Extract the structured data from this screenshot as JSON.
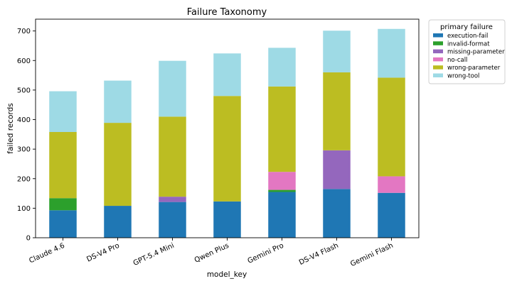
{
  "chart_data": {
    "type": "bar",
    "stacked": true,
    "title": "Failure Taxonomy",
    "xlabel": "model_key",
    "ylabel": "failed records",
    "ylim": [
      0,
      740
    ],
    "yticks": [
      0,
      100,
      200,
      300,
      400,
      500,
      600,
      700
    ],
    "grid": false,
    "legend": {
      "title": "primary failure",
      "placement": "outside-top-right"
    },
    "categories": [
      "Claude 4.6",
      "DS-V4 Pro",
      "GPT-5.4 Mini",
      "Qwen Plus",
      "Gemini Pro",
      "DS-V4 Flash",
      "Gemini Flash"
    ],
    "series": [
      {
        "name": "execution-fail",
        "color": "#1f77b4",
        "values": [
          93,
          108,
          121,
          123,
          155,
          165,
          152
        ]
      },
      {
        "name": "invalid-format",
        "color": "#2ca02c",
        "values": [
          41,
          0,
          0,
          0,
          7,
          0,
          0
        ]
      },
      {
        "name": "missing-parameter",
        "color": "#9467bd",
        "values": [
          0,
          0,
          18,
          0,
          0,
          131,
          0
        ]
      },
      {
        "name": "no-call",
        "color": "#e377c2",
        "values": [
          0,
          0,
          0,
          0,
          61,
          0,
          56
        ]
      },
      {
        "name": "wrong-parameter",
        "color": "#bcbd22",
        "values": [
          224,
          281,
          271,
          357,
          289,
          264,
          334
        ]
      },
      {
        "name": "wrong-tool",
        "color": "#9edae5",
        "values": [
          138,
          143,
          189,
          144,
          131,
          141,
          165
        ]
      }
    ]
  }
}
